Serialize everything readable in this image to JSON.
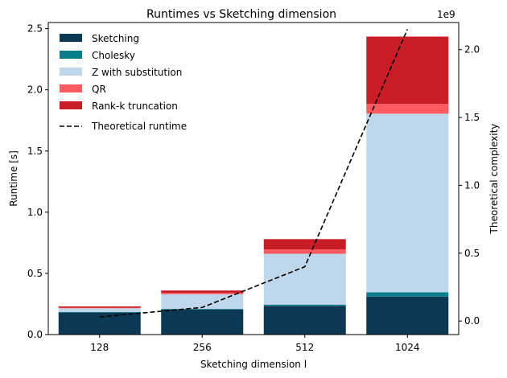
{
  "chart_data": {
    "type": "bar",
    "stacked": true,
    "title": "Runtimes vs Sketching dimension",
    "xlabel": "Sketching dimension l",
    "ylabel": "Runtime [s]",
    "y2label": "Theoretical complexity",
    "y2_multiplier_label": "1e9",
    "categories": [
      "128",
      "256",
      "512",
      "1024"
    ],
    "ylim": [
      0,
      2.55
    ],
    "yticks": [
      "0.0",
      "0.5",
      "1.0",
      "1.5",
      "2.0",
      "2.5"
    ],
    "ytick_values": [
      0,
      0.5,
      1.0,
      1.5,
      2.0,
      2.5
    ],
    "y2lim": [
      -0.1,
      2.2
    ],
    "y2ticks": [
      "0.0",
      "0.5",
      "1.0",
      "1.5",
      "2.0"
    ],
    "y2tick_values": [
      0,
      0.5,
      1.0,
      1.5,
      2.0
    ],
    "series": [
      {
        "name": "Sketching",
        "color": "#0b3954",
        "values": [
          0.18,
          0.205,
          0.235,
          0.31
        ]
      },
      {
        "name": "Cholesky",
        "color": "#087e8b",
        "values": [
          0.005,
          0.005,
          0.01,
          0.035
        ]
      },
      {
        "name": "Z with substitution",
        "color": "#bfd7ea",
        "values": [
          0.03,
          0.12,
          0.415,
          1.46
        ]
      },
      {
        "name": "QR",
        "color": "#ff5a5f",
        "values": [
          0.005,
          0.01,
          0.035,
          0.08
        ]
      },
      {
        "name": "Rank-k truncation",
        "color": "#c81d25",
        "values": [
          0.01,
          0.02,
          0.085,
          0.55
        ]
      }
    ],
    "line_series": {
      "name": "Theoretical runtime",
      "color": "#000000",
      "style": "dashed",
      "axis": "right",
      "values": [
        0.03,
        0.1,
        0.4,
        2.15
      ]
    },
    "legend_position": "top-left"
  }
}
